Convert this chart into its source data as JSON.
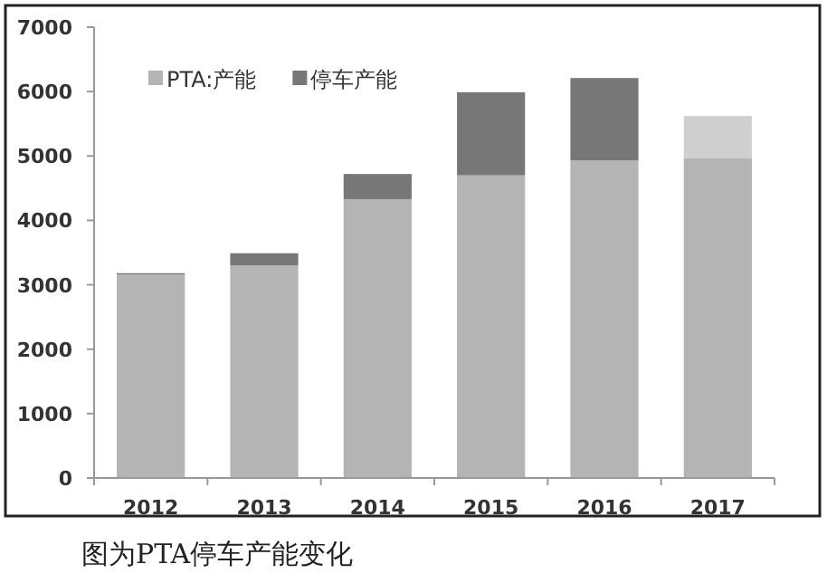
{
  "chart_data": {
    "type": "bar",
    "stacked": true,
    "categories": [
      "2012",
      "2013",
      "2014",
      "2015",
      "2016",
      "2017"
    ],
    "series": [
      {
        "name": "PTA:产能",
        "color": "#b4b4b4",
        "values": [
          3160,
          3300,
          4330,
          4700,
          4930,
          4970
        ]
      },
      {
        "name": "停车产能",
        "color": "#777777",
        "colors": [
          "#777777",
          "#777777",
          "#777777",
          "#777777",
          "#777777",
          "#cfcfcf"
        ],
        "values": [
          20,
          190,
          390,
          1290,
          1280,
          650
        ]
      }
    ],
    "ylim": [
      0,
      7000
    ],
    "yticks": [
      0,
      1000,
      2000,
      3000,
      4000,
      5000,
      6000,
      7000
    ],
    "grid": false,
    "legend": "top left",
    "annotations": [
      "图为PTA停车产能变化"
    ]
  }
}
